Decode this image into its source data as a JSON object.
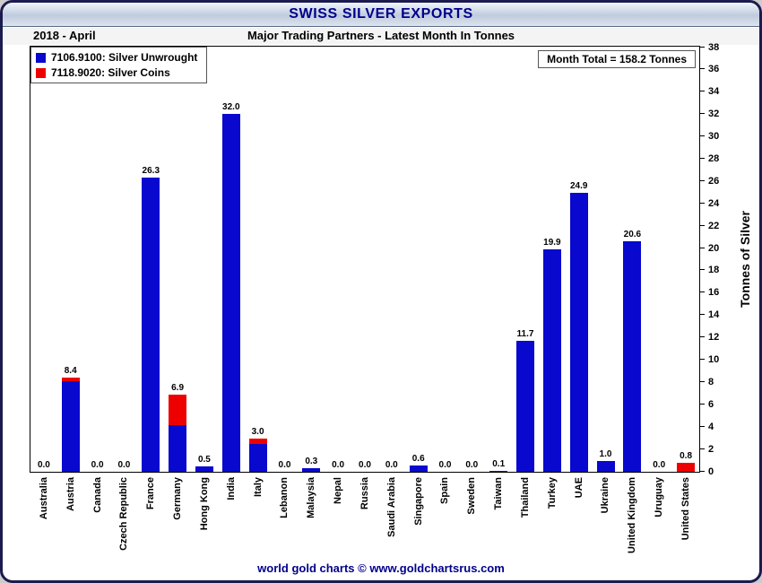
{
  "title": "SWISS SILVER EXPORTS",
  "header": {
    "date_label": "2018 - April",
    "subtitle": "Major Trading Partners - Latest Month In Tonnes"
  },
  "legend": [
    {
      "label": "7106.9100: Silver Unwrought",
      "color": "#0808CF"
    },
    {
      "label": "7118.9020: Silver Coins",
      "color": "#EE0000"
    }
  ],
  "month_total": "Month Total = 158.2 Tonnes",
  "y_axis": {
    "label": "Tonnes of Silver",
    "min": 0,
    "max": 38,
    "step": 2
  },
  "footer": "world gold charts © www.goldchartsrus.com",
  "chart_data": {
    "type": "bar",
    "stacked": true,
    "title": "Swiss Silver Exports - Major Trading Partners - Latest Month In Tonnes - 2018 April",
    "ylabel": "Tonnes of Silver",
    "ylim": [
      0,
      38
    ],
    "grid": false,
    "legend_position": "top-left",
    "categories": [
      "Australia",
      "Austria",
      "Canada",
      "Czech Republic",
      "France",
      "Germany",
      "Hong Kong",
      "India",
      "Italy",
      "Lebanon",
      "Malaysia",
      "Nepal",
      "Russia",
      "Saudi Arabia",
      "Singapore",
      "Spain",
      "Sweden",
      "Taiwan",
      "Thailand",
      "Turkey",
      "UAE",
      "Ukraine",
      "United Kingdom",
      "Uruguay",
      "United States"
    ],
    "series": [
      {
        "name": "7106.9100: Silver Unwrought",
        "color": "#0808CF",
        "values": [
          0.0,
          8.1,
          0.0,
          0.0,
          26.3,
          4.2,
          0.5,
          32.0,
          2.5,
          0.0,
          0.3,
          0.0,
          0.0,
          0.0,
          0.6,
          0.0,
          0.0,
          0.1,
          11.7,
          19.9,
          24.9,
          1.0,
          20.6,
          0.0,
          0.0
        ]
      },
      {
        "name": "7118.9020: Silver Coins",
        "color": "#EE0000",
        "values": [
          0.0,
          0.3,
          0.0,
          0.0,
          0.0,
          2.7,
          0.0,
          0.0,
          0.5,
          0.0,
          0.0,
          0.0,
          0.0,
          0.0,
          0.0,
          0.0,
          0.0,
          0.0,
          0.0,
          0.0,
          0.0,
          0.0,
          0.0,
          0.0,
          0.8
        ]
      }
    ],
    "totals_labels": [
      "0.0",
      "8.4",
      "0.0",
      "0.0",
      "26.3",
      "6.9",
      "0.5",
      "32.0",
      "3.0",
      "0.0",
      "0.3",
      "0.0",
      "0.0",
      "0.0",
      "0.6",
      "0.0",
      "0.0",
      "0.1",
      "11.7",
      "19.9",
      "24.9",
      "1.0",
      "20.6",
      "0.0",
      "0.8"
    ],
    "month_total_tonnes": 158.2
  }
}
